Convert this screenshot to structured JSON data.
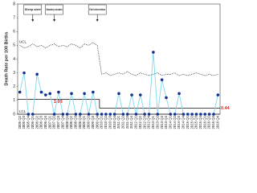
{
  "chart_data": {
    "type": "line",
    "y_label": "Death Rate per 100 Births",
    "categories": [
      "2005 Q2",
      "2005 Q3",
      "2005 Q4",
      "2006 Q1",
      "2006 Q2",
      "2006 Q3",
      "2006 Q4",
      "2007 Q1",
      "2007 Q2",
      "2007 Q3",
      "2007 Q4",
      "2008 Q1",
      "2008 Q2",
      "2008 Q3",
      "2008 Q4",
      "2009 Q1",
      "2009 Q2",
      "2009 Q3",
      "2009 Q4",
      "2010 Q1",
      "2010 Q2",
      "2010 Q3",
      "2010 Q4",
      "2011 Q1",
      "2011 Q2",
      "2011 Q3",
      "2011 Q4",
      "2012 Q1",
      "2012 Q2",
      "2012 Q3",
      "2012 Q4",
      "2013 Q1",
      "2013 Q2",
      "2013 Q3",
      "2013 Q4",
      "2014 Q1",
      "2014 Q2",
      "2014 Q3",
      "2014 Q4",
      "2015 Q1",
      "2015 Q2",
      "2015 Q3",
      "2015 Q4",
      "2016 Q1",
      "2016 Q2",
      "2016 Q3",
      "2016 Q4"
    ],
    "series": [
      {
        "color": "#7fd8ef",
        "marker_color": "#1a2f8a",
        "values": [
          1.6,
          3.0,
          0,
          0,
          2.9,
          1.6,
          1.4,
          1.5,
          0,
          1.6,
          0,
          0,
          1.5,
          0,
          0,
          1.5,
          0,
          1.6,
          0,
          0,
          0,
          0,
          0,
          1.5,
          0,
          0,
          1.4,
          0,
          1.4,
          0,
          0,
          4.5,
          0,
          2.5,
          1.2,
          0,
          0,
          1.5,
          0,
          0,
          0,
          0,
          0,
          0,
          0,
          0,
          1.4
        ]
      }
    ],
    "ucl": {
      "label": "UCL",
      "color": "#222222",
      "values": [
        5.0,
        4.8,
        4.9,
        5.1,
        4.9,
        5.0,
        4.8,
        5.0,
        5.1,
        4.9,
        5.0,
        4.9,
        5.1,
        5.0,
        4.8,
        5.1,
        5.0,
        5.2,
        5.0,
        2.9,
        3.0,
        2.8,
        2.9,
        3.0,
        2.9,
        3.1,
        2.9,
        2.8,
        3.0,
        2.9,
        2.8,
        2.9,
        3.0,
        2.8,
        2.9,
        2.9,
        3.0,
        2.8,
        2.9,
        2.8,
        2.9,
        3.0,
        2.9,
        2.8,
        2.9,
        2.8,
        2.9
      ]
    },
    "lcl": {
      "label": "LCL",
      "value": 0
    },
    "center_lines": [
      {
        "value": 1.08,
        "start": "2005 Q2",
        "end": "2009 Q4"
      },
      {
        "value": 0.44,
        "start": "2010 Q1",
        "end": "2016 Q4"
      }
    ],
    "center_label_color": "#e0201b",
    "annotations": [
      {
        "text": "Sleep alert",
        "category": "2006 Q1"
      },
      {
        "text": "Mandatory education",
        "category": "2007 Q2"
      },
      {
        "text": "Full intervention",
        "category": "2009 Q4"
      }
    ],
    "ylim": [
      0,
      8
    ],
    "yticks": [
      0,
      1,
      2,
      3,
      4,
      5,
      6,
      7,
      8
    ]
  }
}
